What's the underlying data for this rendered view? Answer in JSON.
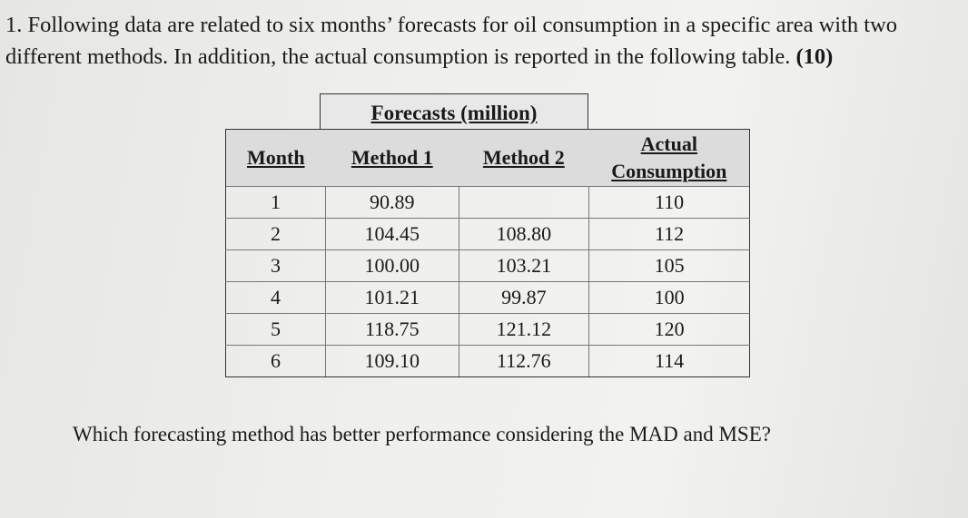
{
  "question": {
    "text": "1. Following data are related to six months’ forecasts for oil consumption in a specific area with two different methods. In addition, the actual consumption is reported in the following table.",
    "marks": "(10)"
  },
  "table": {
    "group_header": "Forecasts (million)",
    "headers": [
      "Month",
      "Method 1",
      "Method 2",
      "Actual Consumption"
    ],
    "rows": [
      [
        "1",
        "90.89",
        null,
        "110"
      ],
      [
        "2",
        "104.45",
        "108.80",
        "112"
      ],
      [
        "3",
        "100.00",
        "103.21",
        "105"
      ],
      [
        "4",
        "101.21",
        "99.87",
        "100"
      ],
      [
        "5",
        "118.75",
        "121.12",
        "120"
      ],
      [
        "6",
        "109.10",
        "112.76",
        "114"
      ]
    ]
  },
  "followup": "Which forecasting method has better performance considering the MAD and MSE?"
}
